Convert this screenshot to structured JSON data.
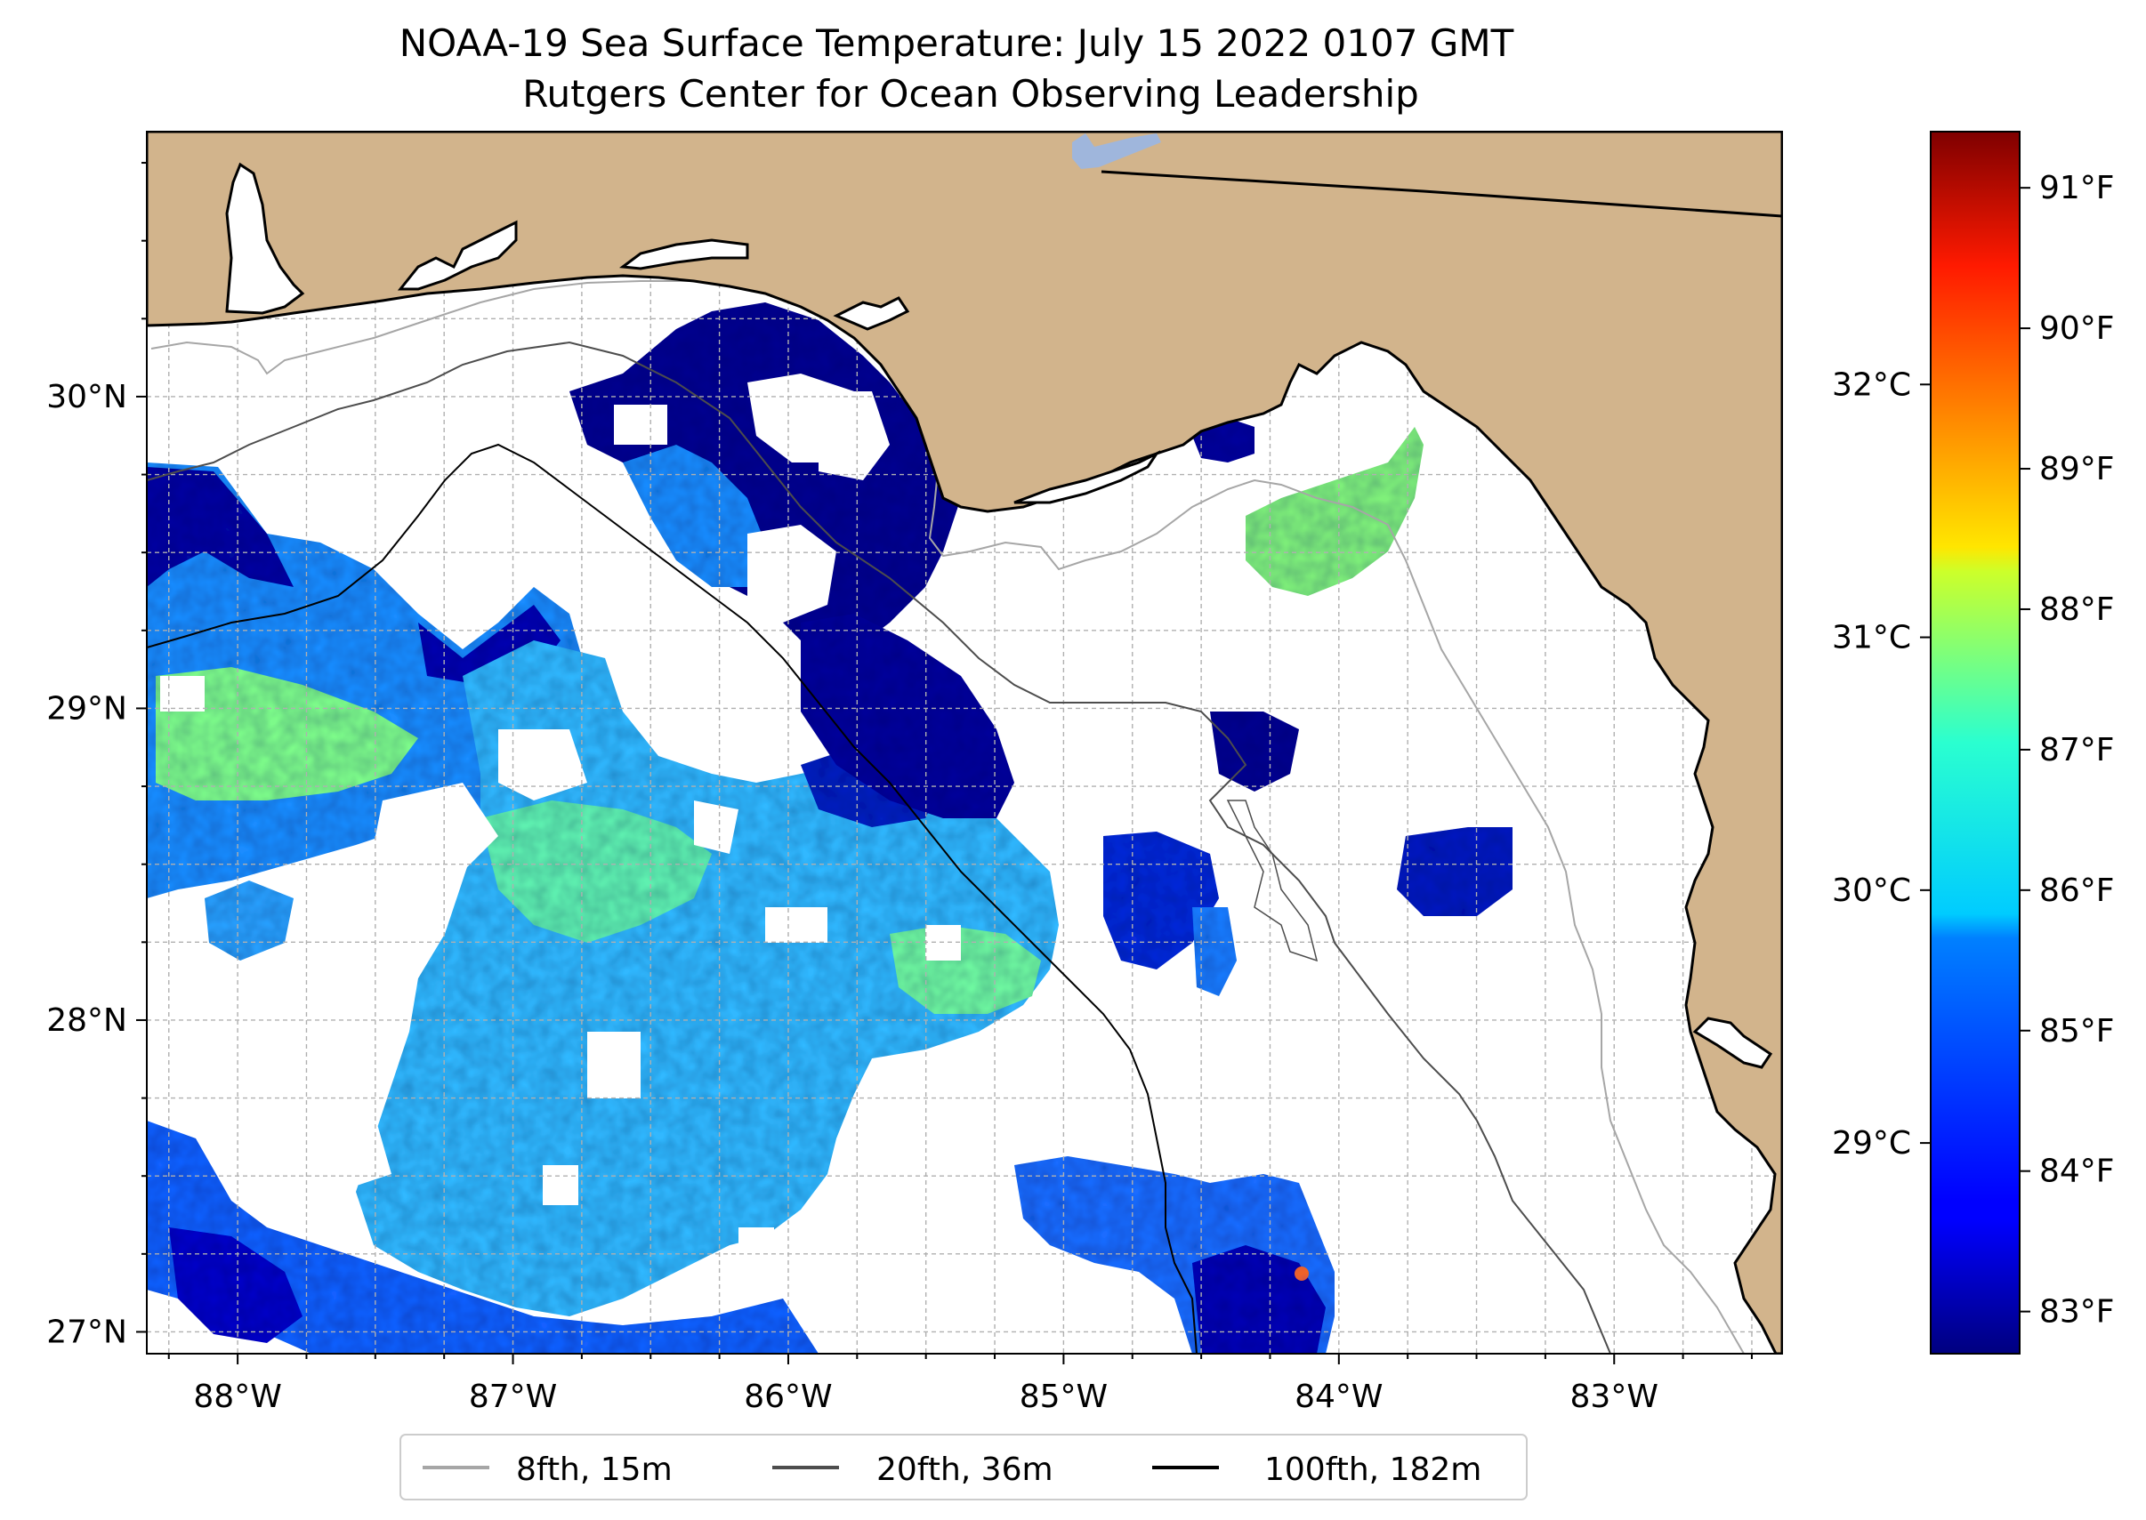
{
  "title": {
    "line1": "NOAA-19 Sea Surface Temperature: July 15 2022 0107 GMT",
    "line2": "Rutgers Center for Ocean Observing Leadership"
  },
  "axes": {
    "x_ticks": [
      "88°W",
      "87°W",
      "86°W",
      "85°W",
      "84°W",
      "83°W"
    ],
    "x_values": [
      -88,
      -87,
      -86,
      -85,
      -84,
      -83
    ],
    "y_ticks": [
      "30°N",
      "29°N",
      "28°N",
      "27°N"
    ],
    "y_values": [
      30,
      29,
      28,
      27
    ],
    "lon_range": [
      -88.33,
      -82.39
    ],
    "lat_range": [
      26.93,
      30.85
    ]
  },
  "colorbar": {
    "fahrenheit_ticks": [
      "91°F",
      "90°F",
      "89°F",
      "88°F",
      "87°F",
      "86°F",
      "85°F",
      "84°F",
      "83°F"
    ],
    "fahrenheit_values": [
      91,
      90,
      89,
      88,
      87,
      86,
      85,
      84,
      83
    ],
    "celsius_ticks": [
      "32°C",
      "31°C",
      "30°C",
      "29°C"
    ],
    "celsius_values": [
      32,
      31,
      30,
      29
    ],
    "range_f": [
      82.7,
      91.4
    ],
    "colormap": "jet"
  },
  "legend": {
    "items": [
      {
        "label": "8fth, 15m",
        "color": "#a6a6a6"
      },
      {
        "label": "20fth, 36m",
        "color": "#4d4d4d"
      },
      {
        "label": "100fth, 182m",
        "color": "#000000"
      }
    ]
  },
  "colors": {
    "land": "#d2b48c",
    "lake": "#9fb6dc",
    "no_data": "#ffffff",
    "grid": "#b0b0b0"
  }
}
